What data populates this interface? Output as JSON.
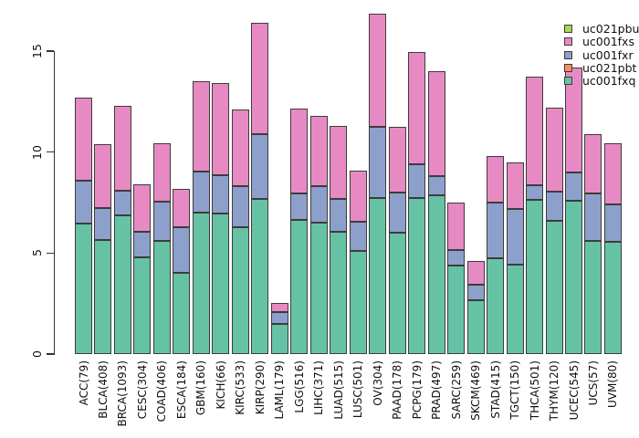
{
  "chart_data": {
    "type": "bar",
    "stacked": true,
    "title": "",
    "xlabel": "",
    "ylabel": "",
    "categories": [
      "ACC(79)",
      "BLCA(408)",
      "BRCA(1093)",
      "CESC(304)",
      "COAD(406)",
      "ESCA(184)",
      "GBM(160)",
      "KICH(66)",
      "KIRC(533)",
      "KIRP(290)",
      "LAML(179)",
      "LGG(516)",
      "LIHC(371)",
      "LUAD(515)",
      "LUSC(501)",
      "OV(304)",
      "PAAD(178)",
      "PCPG(179)",
      "PRAD(497)",
      "SARC(259)",
      "SKCM(469)",
      "STAD(415)",
      "TGCT(150)",
      "THCA(501)",
      "THYM(120)",
      "UCEC(545)",
      "UCS(57)",
      "UVM(80)"
    ],
    "series": [
      {
        "name": "uc001fxq",
        "color": "#66C2A5",
        "values": [
          6.45,
          5.65,
          6.85,
          4.8,
          5.6,
          4.0,
          7.0,
          6.95,
          6.3,
          7.7,
          1.5,
          6.65,
          6.5,
          6.05,
          5.1,
          7.75,
          6.0,
          7.75,
          7.85,
          4.4,
          2.65,
          4.75,
          4.45,
          7.65,
          6.6,
          7.6,
          5.6,
          5.55
        ]
      },
      {
        "name": "uc021pbt",
        "color": "#FC8D62",
        "values": [
          0,
          0,
          0,
          0,
          0,
          0,
          0,
          0,
          0,
          0,
          0,
          0,
          0,
          0,
          0,
          0,
          0,
          0,
          0,
          0,
          0,
          0,
          0,
          0,
          0,
          0,
          0,
          0
        ]
      },
      {
        "name": "uc001fxr",
        "color": "#8DA0CB",
        "values": [
          2.15,
          1.6,
          1.25,
          1.25,
          1.95,
          2.3,
          2.05,
          1.9,
          2.0,
          3.2,
          0.6,
          1.3,
          1.8,
          1.65,
          1.45,
          3.5,
          2.0,
          1.65,
          0.95,
          0.75,
          0.8,
          2.75,
          2.75,
          0.7,
          1.45,
          1.4,
          2.35,
          1.85
        ]
      },
      {
        "name": "uc001fxs",
        "color": "#E78AC3",
        "values": [
          4.1,
          3.15,
          4.2,
          2.35,
          2.9,
          1.9,
          4.45,
          4.55,
          3.8,
          5.5,
          0.45,
          4.2,
          3.5,
          3.6,
          2.55,
          5.6,
          3.25,
          5.55,
          5.2,
          2.35,
          1.15,
          2.3,
          2.3,
          5.4,
          4.15,
          5.2,
          2.95,
          3.05
        ]
      },
      {
        "name": "uc021pbu",
        "color": "#A6D854",
        "values": [
          0,
          0,
          0,
          0,
          0,
          0,
          0,
          0,
          0,
          0,
          0,
          0,
          0,
          0,
          0,
          0,
          0,
          0,
          0,
          0,
          0,
          0,
          0,
          0,
          0,
          0,
          0,
          0
        ]
      }
    ],
    "yticks": [
      0,
      5,
      10,
      15
    ],
    "ylim": [
      0,
      17.6
    ],
    "grid": false,
    "legend": {
      "position": "top-right",
      "entries": [
        "uc021pbu",
        "uc001fxs",
        "uc001fxr",
        "uc021pbt",
        "uc001fxq"
      ]
    },
    "bar_border_color": "#3c3c3c"
  }
}
